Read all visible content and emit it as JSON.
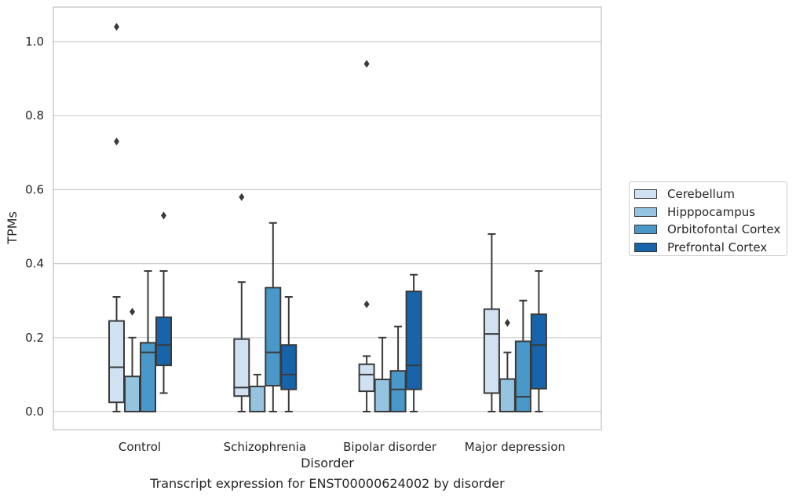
{
  "chart_data": {
    "type": "box",
    "caption": "Transcript expression for ENST00000624002 by disorder",
    "xlabel": "Disorder",
    "ylabel": "TPMs",
    "ylim": [
      -0.05,
      1.09
    ],
    "yticks": [
      0.0,
      0.2,
      0.4,
      0.6,
      0.8,
      1.0
    ],
    "ytick_labels": [
      "0.0",
      "0.2",
      "0.4",
      "0.6",
      "0.8",
      "1.0"
    ],
    "grid": "horizontal",
    "legend_position": "right",
    "categories": [
      "Control",
      "Schizophrenia",
      "Bipolar disorder",
      "Major depression"
    ],
    "series": [
      {
        "name": "Cerebellum",
        "color": "#d0e1f2",
        "boxes": [
          {
            "whisker_low": 0.0,
            "q1": 0.025,
            "median": 0.12,
            "q3": 0.245,
            "whisker_high": 0.31,
            "outliers": [
              0.73,
              1.04
            ]
          },
          {
            "whisker_low": 0.0,
            "q1": 0.042,
            "median": 0.065,
            "q3": 0.196,
            "whisker_high": 0.35,
            "outliers": [
              0.58
            ]
          },
          {
            "whisker_low": 0.0,
            "q1": 0.055,
            "median": 0.1,
            "q3": 0.128,
            "whisker_high": 0.15,
            "outliers": [
              0.29,
              0.94
            ]
          },
          {
            "whisker_low": 0.0,
            "q1": 0.05,
            "median": 0.21,
            "q3": 0.277,
            "whisker_high": 0.48,
            "outliers": []
          }
        ]
      },
      {
        "name": "Hipppocampus",
        "color": "#94c4df",
        "boxes": [
          {
            "whisker_low": 0.0,
            "q1": 0.0,
            "median": 0.0,
            "q3": 0.095,
            "whisker_high": 0.2,
            "outliers": [
              0.27
            ]
          },
          {
            "whisker_low": 0.0,
            "q1": 0.0,
            "median": 0.0,
            "q3": 0.068,
            "whisker_high": 0.1,
            "outliers": []
          },
          {
            "whisker_low": 0.0,
            "q1": 0.0,
            "median": 0.0,
            "q3": 0.087,
            "whisker_high": 0.2,
            "outliers": []
          },
          {
            "whisker_low": 0.0,
            "q1": 0.0,
            "median": 0.0,
            "q3": 0.088,
            "whisker_high": 0.16,
            "outliers": [
              0.24
            ]
          }
        ]
      },
      {
        "name": "Orbitofontal Cortex",
        "color": "#4a98c9",
        "boxes": [
          {
            "whisker_low": 0.0,
            "q1": 0.0,
            "median": 0.16,
            "q3": 0.186,
            "whisker_high": 0.38,
            "outliers": []
          },
          {
            "whisker_low": 0.0,
            "q1": 0.07,
            "median": 0.16,
            "q3": 0.335,
            "whisker_high": 0.51,
            "outliers": []
          },
          {
            "whisker_low": 0.0,
            "q1": 0.0,
            "median": 0.06,
            "q3": 0.11,
            "whisker_high": 0.23,
            "outliers": []
          },
          {
            "whisker_low": 0.0,
            "q1": 0.0,
            "median": 0.04,
            "q3": 0.19,
            "whisker_high": 0.3,
            "outliers": []
          }
        ]
      },
      {
        "name": "Prefrontal Cortex",
        "color": "#1764ab",
        "boxes": [
          {
            "whisker_low": 0.05,
            "q1": 0.125,
            "median": 0.18,
            "q3": 0.255,
            "whisker_high": 0.38,
            "outliers": [
              0.53
            ]
          },
          {
            "whisker_low": 0.0,
            "q1": 0.06,
            "median": 0.1,
            "q3": 0.18,
            "whisker_high": 0.31,
            "outliers": []
          },
          {
            "whisker_low": 0.0,
            "q1": 0.06,
            "median": 0.125,
            "q3": 0.325,
            "whisker_high": 0.37,
            "outliers": []
          },
          {
            "whisker_low": 0.0,
            "q1": 0.062,
            "median": 0.18,
            "q3": 0.263,
            "whisker_high": 0.38,
            "outliers": []
          }
        ]
      }
    ]
  }
}
